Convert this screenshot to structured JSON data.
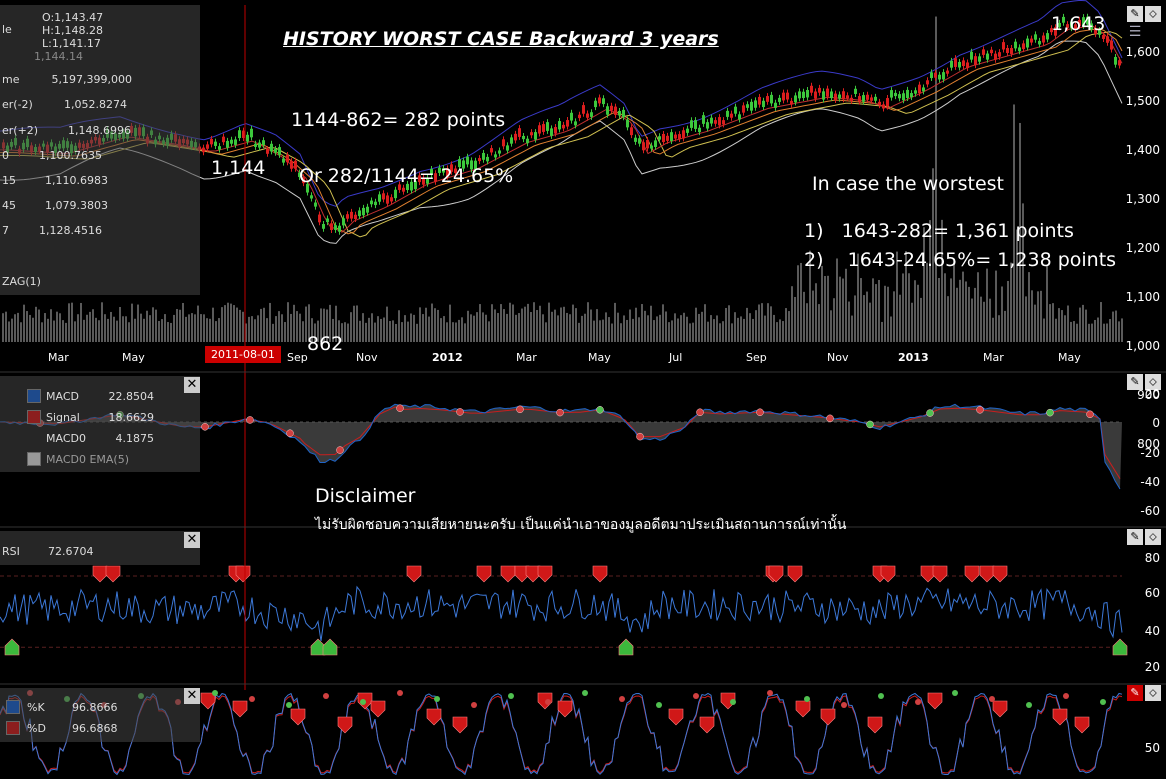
{
  "chart_data": [
    {
      "type": "line",
      "panel": "price",
      "title": "HISTORY WORST CASE Backward 3 years",
      "y_ticks": [
        "1,600",
        "1,500",
        "1,400",
        "1,300",
        "1,200",
        "1,100",
        "1,000",
        "900",
        "800"
      ],
      "ylim": [
        800,
        1650
      ],
      "x_labels": [
        "Mar",
        "May",
        "2011-08-01",
        "Sep",
        "Nov",
        "2012",
        "Mar",
        "May",
        "Jul",
        "Sep",
        "Nov",
        "2013",
        "Mar",
        "May"
      ],
      "year_labels": [
        "2012",
        "2013"
      ],
      "selected_date": "2011-08-01",
      "series": [
        {
          "name": "Close",
          "color": "#3cc83c",
          "x": [
            "2011-03",
            "2011-05",
            "2011-07",
            "2011-08",
            "2011-10",
            "2011-12",
            "2012-03",
            "2012-05",
            "2012-06",
            "2012-09",
            "2012-11",
            "2013-01",
            "2013-03",
            "2013-05",
            "2013-06"
          ],
          "values": [
            1320,
            1345,
            1330,
            1144,
            862,
            1225,
            1400,
            1405,
            1340,
            1460,
            1380,
            1480,
            1560,
            1643,
            1580
          ]
        }
      ],
      "legend_values": [
        {
          "label": "O:1,143.47"
        },
        {
          "label": "H:1,148.28"
        },
        {
          "label": "L:1,141.17"
        },
        {
          "label": "1,144.14"
        },
        {
          "label": "5,197,399,000"
        },
        {
          "label": "1,052.8274"
        },
        {
          "label": "1,148.6996"
        },
        {
          "label": "1,100.7635"
        },
        {
          "label": "1,110.6983"
        },
        {
          "label": "1,079.3803"
        },
        {
          "label": "1,128.4516"
        }
      ],
      "legend_names": [
        "le",
        "me",
        "er(-2)",
        "er(+2)",
        "0",
        "15",
        "45",
        "7",
        "ZAG(1)"
      ],
      "annotations": {
        "peak_left": "1,144",
        "trough": "862",
        "peak_right": "1,643",
        "calc1": "1144-862= 282 points",
        "calc2": "Or 282/1144= 24.65%",
        "worst_title": "In case the worstest",
        "worst1": "1)   1643-282= 1,361 points",
        "worst2": "2)    1643-24.65%= 1,238 points"
      }
    },
    {
      "type": "line",
      "panel": "macd",
      "y_ticks": [
        "20",
        "0",
        "-20",
        "-40",
        "-60"
      ],
      "ylim": [
        -65,
        25
      ],
      "series": [
        {
          "name": "MACD",
          "value_label": "22.8504",
          "color": "#1e64c8"
        },
        {
          "name": "Signal",
          "value_label": "18.6629",
          "color": "#c81e1e"
        },
        {
          "name": "MACD0",
          "value_label": "4.1875",
          "color": "#888888"
        },
        {
          "name": "MACD0 EMA(5)",
          "value_label": "",
          "color": "#888888"
        }
      ]
    },
    {
      "type": "line",
      "panel": "rsi",
      "y_ticks": [
        "80",
        "60",
        "40",
        "20"
      ],
      "ylim": [
        15,
        90
      ],
      "series": [
        {
          "name": "RSI",
          "value_label": "72.6704",
          "color": "#3c78d8"
        }
      ]
    },
    {
      "type": "line",
      "panel": "stochastic",
      "y_ticks": [
        "50"
      ],
      "series": [
        {
          "name": "%K",
          "value_label": "96.8666",
          "color": "#1e64c8"
        },
        {
          "name": "%D",
          "value_label": "96.6868",
          "color": "#c81e1e"
        }
      ]
    }
  ],
  "disclaimer": {
    "title": "Disclaimer",
    "text": "ไม่รับผิดชอบความเสียหายนะครับ เป็นแค่นำเอาของมูลอดีตมาประเมินสถานการณ์เท่านั้น"
  },
  "icons": {
    "close": "close-icon",
    "draw": "pencil-icon",
    "edit": "edit-icon",
    "menu": "menu-icon"
  },
  "colors": {
    "background": "#000000",
    "bull": "#3cc83c",
    "bear": "#dc1e1e",
    "bollinger": "#3a3ac8",
    "ma_fast": "#e08030",
    "ma_slow": "#d0c050",
    "volume": "#5a5a5a",
    "marker": "#d01818",
    "marker_green": "#3cb83c",
    "cursor": "#c00000"
  },
  "ui": {
    "close_glyph": "✕",
    "pencil_glyph": "✎",
    "edit_glyph": "⬦",
    "menu_glyph": "☰"
  }
}
